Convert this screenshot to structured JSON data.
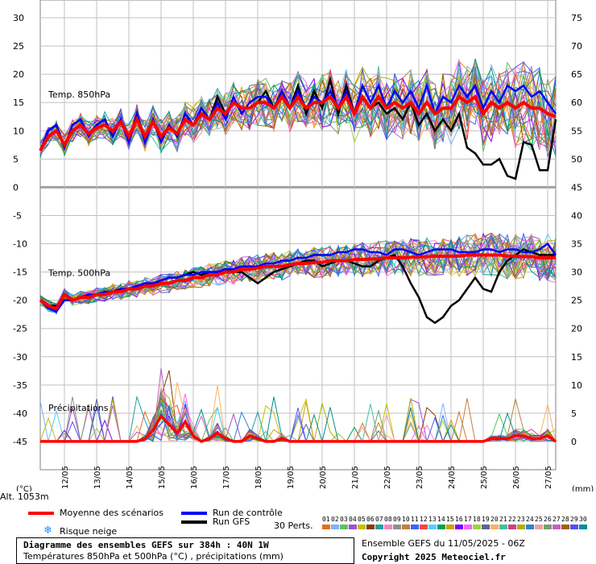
{
  "chart_data": {
    "type": "line",
    "title": "Diagramme des ensembles GEFS sur 384h : 40N 1W",
    "subtitle": "Températures 850hPa et 500hPa (°C) , précipitations (mm)",
    "x_ticks": [
      "12/05",
      "13/05",
      "14/05",
      "15/05",
      "16/05",
      "17/05",
      "18/05",
      "19/05",
      "20/05",
      "21/05",
      "22/05",
      "23/05",
      "24/05",
      "25/05",
      "26/05",
      "27/05"
    ],
    "x_start": "11/05 06Z",
    "x_step_hours": 6,
    "n_steps": 65,
    "left_axis": {
      "label": "(°C)",
      "ticks": [
        30,
        25,
        20,
        15,
        10,
        5,
        0,
        -5,
        -10,
        -15,
        -20,
        -25,
        -30,
        -35,
        -40,
        -45
      ],
      "range": [
        -50,
        30
      ]
    },
    "right_axis": {
      "label": "(mm)",
      "ticks": [
        75,
        70,
        65,
        60,
        55,
        50,
        45,
        40,
        35,
        30,
        25,
        20,
        15,
        10,
        5,
        0
      ]
    },
    "panel_labels": {
      "t850": "Temp. 850hPa",
      "t500": "Temp. 500hPa",
      "precip": "Précipitations"
    },
    "altitude": "Alt. 1053m",
    "series": [
      {
        "name": "Moyenne des scénarios",
        "color": "#ff0000",
        "values_t850": [
          6.5,
          9,
          10,
          7.5,
          10,
          11,
          9.5,
          10.5,
          11,
          10,
          11.5,
          9,
          12,
          9,
          11.5,
          9,
          10.5,
          9.5,
          12,
          11,
          13,
          12,
          14,
          13,
          15,
          14,
          14,
          15,
          15,
          14,
          16,
          14,
          16,
          14,
          15,
          15,
          16,
          14,
          16,
          13,
          16,
          14,
          16,
          14,
          15,
          14,
          15,
          13,
          15,
          13,
          14,
          14,
          16,
          15,
          16,
          13,
          15,
          14,
          15,
          14,
          15,
          14,
          14,
          13,
          12.5
        ]
      },
      {
        "name": "Run de contrôle",
        "color": "#0000ff",
        "values_t850": [
          6.5,
          10,
          11,
          7,
          11,
          12,
          9,
          11,
          12,
          9,
          12,
          8,
          13,
          8,
          12,
          8,
          11,
          9,
          13,
          11,
          14,
          12,
          15,
          12,
          16,
          13,
          15,
          16,
          16,
          14,
          17,
          14,
          17,
          14,
          16,
          15,
          17,
          14,
          17,
          13,
          18,
          15,
          18,
          14,
          17,
          15,
          17,
          14,
          18,
          13,
          16,
          15,
          18,
          16,
          18,
          14,
          17,
          15,
          18,
          17,
          18,
          16,
          17,
          15,
          13
        ]
      },
      {
        "name": "Run GFS",
        "color": "#000000",
        "values_t850": [
          6.5,
          10,
          11,
          7,
          11,
          12,
          9,
          11,
          12,
          9,
          12,
          8,
          13,
          8,
          12,
          8,
          11,
          9,
          13,
          11,
          14,
          12,
          16,
          13,
          15,
          14,
          14,
          15,
          17,
          14,
          17,
          14,
          18,
          13,
          17,
          14,
          19,
          13,
          18,
          13,
          16,
          14,
          15,
          13,
          14,
          12,
          15,
          11,
          13,
          10,
          12,
          10,
          13,
          7,
          6,
          4,
          4,
          5,
          2,
          1.5,
          8,
          7.5,
          3,
          3,
          12
        ],
        "values_t500": [
          -20,
          -21,
          -21,
          -20,
          -20,
          -19.5,
          -19,
          -19,
          -18.5,
          -18.5,
          -18,
          -18,
          -17.5,
          -17,
          -17,
          -16.5,
          -16,
          -16,
          -15.5,
          -15,
          -15.5,
          -15,
          -15,
          -14.5,
          -15,
          -15,
          -16,
          -17,
          -16,
          -15,
          -14.5,
          -14,
          -13.5,
          -13,
          -13,
          -14,
          -13.5,
          -13,
          -13,
          -13.5,
          -14,
          -14,
          -13,
          -12.5,
          -12,
          -14,
          -17,
          -19.5,
          -23,
          -24,
          -23,
          -21,
          -20,
          -18,
          -16,
          -18,
          -18.5,
          -15,
          -13,
          -12,
          -11,
          -11.5,
          -12,
          -12,
          -12
        ]
      }
    ],
    "mean_t500": [
      -20,
      -21,
      -21.5,
      -19,
      -20,
      -19.5,
      -19.5,
      -19,
      -19,
      -18.5,
      -18.5,
      -18,
      -18,
      -17.5,
      -17.5,
      -17,
      -17,
      -16.5,
      -16.5,
      -16,
      -16,
      -15.5,
      -15.5,
      -15,
      -15,
      -14.5,
      -14.5,
      -14.3,
      -14,
      -14,
      -14,
      -13.7,
      -13.5,
      -13.5,
      -13.3,
      -13.3,
      -13,
      -13,
      -13,
      -12.8,
      -12.8,
      -12.7,
      -12.7,
      -12.5,
      -12.5,
      -12.5,
      -12.4,
      -12.3,
      -12.3,
      -12.2,
      -12.2,
      -12.2,
      -12.2,
      -12,
      -12,
      -12,
      -12,
      -12,
      -12.2,
      -12.2,
      -12.3,
      -12.3,
      -12.5,
      -12.5,
      -12.5
    ],
    "control_t500": [
      -20,
      -21.5,
      -22,
      -20,
      -20,
      -19.5,
      -19,
      -19,
      -18.5,
      -18.5,
      -18,
      -18,
      -17.5,
      -17,
      -17,
      -16.5,
      -16,
      -16,
      -15.5,
      -15.5,
      -15,
      -15,
      -15,
      -14.5,
      -14.5,
      -14,
      -14,
      -14,
      -13.5,
      -13.5,
      -13,
      -13,
      -12.5,
      -12.5,
      -12,
      -12,
      -12,
      -11.5,
      -11.5,
      -11,
      -11,
      -11.5,
      -11.5,
      -12,
      -11,
      -11,
      -11.5,
      -12,
      -11.5,
      -11,
      -11,
      -11,
      -11.5,
      -11.5,
      -11.5,
      -11,
      -11,
      -11.5,
      -11,
      -11,
      -11.5,
      -11.5,
      -11,
      -10,
      -12
    ],
    "mean_precip_mm": [
      0,
      0,
      0,
      0,
      0,
      0,
      0,
      0,
      0,
      0,
      0,
      0,
      0,
      0.5,
      2,
      4.5,
      3,
      1.5,
      3.5,
      1,
      0,
      0.5,
      1.5,
      0.5,
      0,
      0,
      1,
      0.5,
      0,
      0,
      0.5,
      0,
      0,
      0,
      0,
      0,
      0,
      0,
      0,
      0,
      0,
      0,
      0,
      0,
      0,
      0,
      0,
      0,
      0,
      0,
      0,
      0,
      0,
      0,
      0,
      0,
      0.5,
      0.5,
      0.5,
      1,
      1,
      0.5,
      0.5,
      1,
      0
    ],
    "perturbations_label": "30 Perts.",
    "perturbation_ids": [
      "01",
      "02",
      "03",
      "04",
      "05",
      "06",
      "07",
      "08",
      "09",
      "10",
      "11",
      "12",
      "13",
      "14",
      "15",
      "16",
      "17",
      "18",
      "19",
      "20",
      "21",
      "22",
      "23",
      "24",
      "25",
      "26",
      "27",
      "28",
      "29",
      "30"
    ],
    "perturbation_colors": [
      "#e07020",
      "#80b0ff",
      "#60c060",
      "#a050d0",
      "#c0c000",
      "#804000",
      "#20a0a0",
      "#ff80c0",
      "#909090",
      "#c08040",
      "#4060ff",
      "#ff4040",
      "#50d0ff",
      "#00a050",
      "#d0a000",
      "#8000ff",
      "#ff60ff",
      "#a0d040",
      "#6060a0",
      "#ffb060",
      "#40c0a0",
      "#d04080",
      "#b0b000",
      "#3080d0",
      "#f0a0a0",
      "#70a070",
      "#c060c0",
      "#a06000",
      "#5050ff",
      "#009090"
    ]
  },
  "legend": {
    "mean": "Moyenne des scénarios",
    "control": "Run de contrôle",
    "gfs": "Run GFS",
    "snow_risk": "Risque neige",
    "perts": "30 Perts."
  },
  "title_box": {
    "line1": "Diagramme des ensembles GEFS sur 384h : 40N 1W",
    "line2": "Températures 850hPa et 500hPa (°C) , précipitations (mm)"
  },
  "ensemble_info": "Ensemble GEFS du 11/05/2025 - 06Z",
  "copyright": "Copyright 2025 Meteociel.fr",
  "colors": {
    "grid": "#c0c0c0",
    "mean": "#ff0000",
    "control": "#0000ff",
    "gfs": "#000000"
  }
}
